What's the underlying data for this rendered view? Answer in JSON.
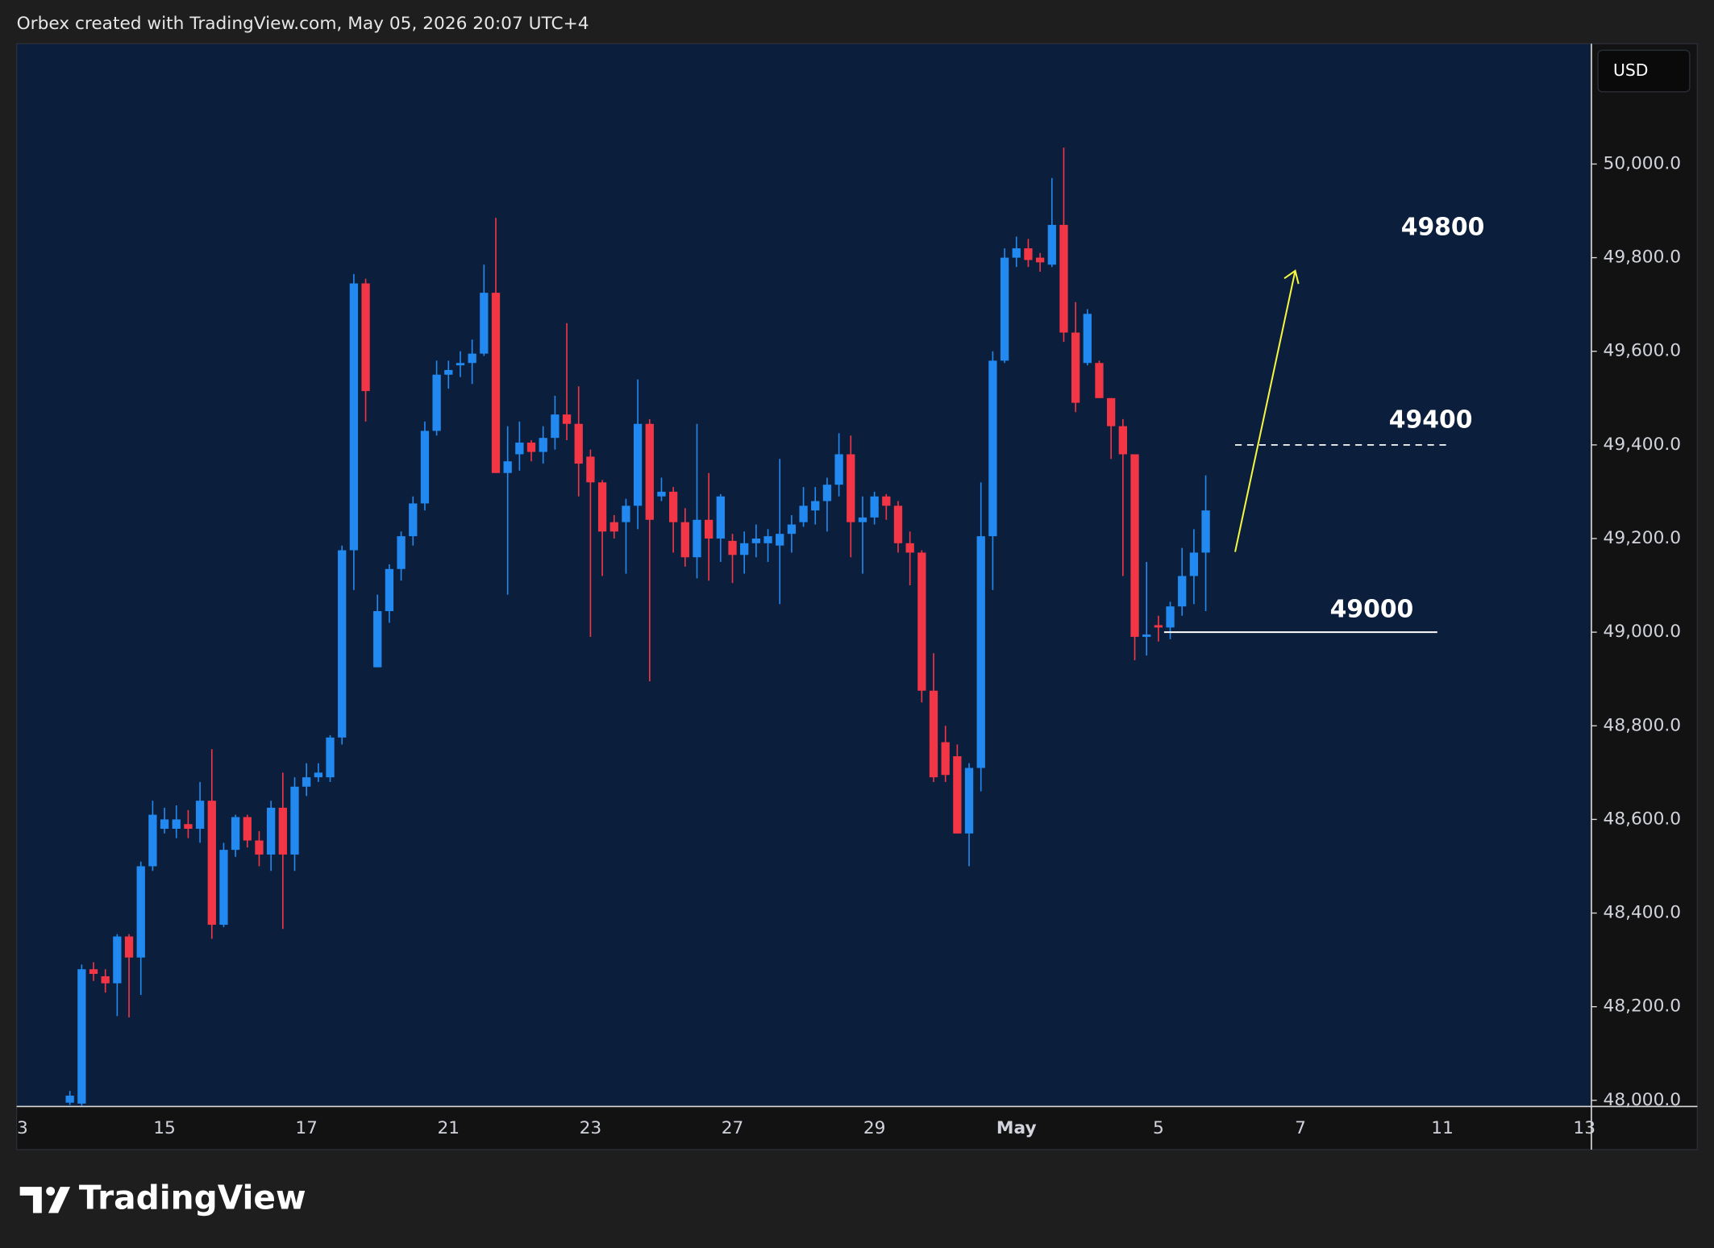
{
  "header": "Orbex created with TradingView.com, May 05, 2026 20:07 UTC+4",
  "brand": "TradingView",
  "chart_data": {
    "type": "candlestick",
    "currency": "USD",
    "up_color": "#2189f0",
    "down_color": "#f23645",
    "categories": [
      "3",
      null,
      null,
      null,
      null,
      null,
      null,
      null,
      null,
      null,
      null,
      null,
      "15",
      null,
      null,
      null,
      null,
      null,
      null,
      null,
      null,
      null,
      null,
      null,
      "17",
      null,
      null,
      null,
      null,
      null,
      null,
      null,
      null,
      null,
      null,
      null,
      "21",
      null,
      null,
      null,
      null,
      null,
      null,
      null,
      null,
      null,
      null,
      null,
      "23",
      null,
      null,
      null,
      null,
      null,
      null,
      null,
      null,
      null,
      null,
      null,
      "27",
      null,
      null,
      null,
      null,
      null,
      null,
      null,
      null,
      null,
      null,
      null,
      "29",
      null,
      null,
      null,
      null,
      null,
      null,
      null,
      null,
      null,
      null,
      null,
      "May",
      null,
      null,
      null,
      null,
      null,
      null,
      null,
      null,
      null,
      null,
      null,
      "5",
      null,
      null,
      null,
      null,
      null,
      null,
      null,
      null,
      null,
      null,
      null,
      "7",
      null,
      null,
      null,
      null,
      null,
      null,
      null,
      null,
      null,
      null,
      null,
      "11",
      null,
      null,
      null,
      null,
      null,
      null,
      null,
      null,
      null,
      null,
      null,
      "13"
    ],
    "open": [
      null,
      null,
      null,
      null,
      47995,
      47993,
      48280,
      48265,
      48250,
      48350,
      48305,
      48500,
      48580,
      48580,
      48590,
      48580,
      48640,
      48375,
      48535,
      48605,
      48555,
      48525,
      48625,
      48525,
      48670,
      48690,
      48690,
      48775,
      49175,
      49745,
      48925,
      49045,
      49135,
      49205,
      49275,
      49430,
      49550,
      49570,
      49575,
      49595,
      49725,
      49340,
      49380,
      49405,
      49385,
      49415,
      49465,
      49445,
      49375,
      49320,
      49235,
      49235,
      49270,
      49445,
      49290,
      49300,
      49235,
      49160,
      49240,
      49200,
      49195,
      49165,
      49190,
      49190,
      49185,
      49210,
      49235,
      49260,
      49280,
      49315,
      49380,
      49235,
      49245,
      49290,
      49270,
      49190,
      49170,
      48875,
      48765,
      48735,
      48570,
      48710,
      49205,
      49580,
      49800,
      49820,
      49800,
      49785,
      49870,
      49640,
      49575,
      49575,
      49500,
      49440,
      49380,
      48990,
      49015,
      49010,
      49055,
      49120,
      49170,
      null,
      null,
      null,
      null,
      null,
      null,
      null,
      null,
      null,
      null,
      null,
      null,
      null,
      null,
      null,
      null,
      null,
      null,
      null,
      null,
      null,
      null,
      null,
      null,
      null,
      null,
      null,
      null,
      null,
      null,
      null,
      null
    ],
    "high": [
      null,
      null,
      null,
      null,
      48020,
      48290,
      48295,
      48280,
      48355,
      48355,
      48510,
      48640,
      48625,
      48630,
      48620,
      48680,
      48750,
      48550,
      48610,
      48610,
      48575,
      48640,
      48700,
      48690,
      48720,
      48720,
      48780,
      49185,
      49765,
      49755,
      49080,
      49145,
      49215,
      49290,
      49450,
      49580,
      49580,
      49600,
      49625,
      49785,
      49885,
      49440,
      49450,
      49410,
      49440,
      49505,
      49660,
      49525,
      49390,
      49325,
      49250,
      49285,
      49540,
      49455,
      49330,
      49310,
      49265,
      49445,
      49340,
      49295,
      49210,
      49215,
      49230,
      49220,
      49370,
      49250,
      49310,
      49310,
      49330,
      49425,
      49420,
      49290,
      49300,
      49295,
      49280,
      49215,
      49175,
      48955,
      48800,
      48760,
      48720,
      49320,
      49600,
      49820,
      49845,
      49840,
      49810,
      49970,
      50035,
      49705,
      49690,
      49580,
      49500,
      49455,
      49380,
      49150,
      49035,
      49065,
      49180,
      49220,
      49335,
      null,
      null,
      null,
      null,
      null,
      null,
      null,
      null,
      null,
      null,
      null,
      null,
      null,
      null,
      null,
      null,
      null,
      null,
      null,
      null,
      null,
      null,
      null,
      null,
      null,
      null,
      null,
      null,
      null,
      null,
      null,
      null
    ],
    "low": [
      null,
      null,
      null,
      null,
      47990,
      47988,
      48255,
      48230,
      48180,
      48177,
      48225,
      48490,
      48570,
      48560,
      48560,
      48550,
      48345,
      48370,
      48520,
      48540,
      48500,
      48490,
      48366,
      48490,
      48650,
      48680,
      48680,
      48760,
      49090,
      49450,
      48925,
      49020,
      49110,
      49185,
      49260,
      49420,
      49520,
      49545,
      49530,
      49590,
      49340,
      49080,
      49345,
      49365,
      49360,
      49390,
      49410,
      49290,
      48990,
      49120,
      49200,
      49125,
      49220,
      48895,
      49280,
      49170,
      49140,
      49115,
      49110,
      49150,
      49105,
      49125,
      49160,
      49150,
      49060,
      49170,
      49225,
      49230,
      49215,
      49290,
      49160,
      49125,
      49230,
      49240,
      49170,
      49100,
      48850,
      48680,
      48680,
      48570,
      48500,
      48660,
      49090,
      49575,
      49780,
      49780,
      49770,
      49780,
      49620,
      49470,
      49570,
      49500,
      49370,
      49120,
      48940,
      48950,
      48980,
      48985,
      49035,
      49060,
      49045,
      null,
      null,
      null,
      null,
      null,
      null,
      null,
      null,
      null,
      null,
      null,
      null,
      null,
      null,
      null,
      null,
      null,
      null,
      null,
      null,
      null,
      null,
      null,
      null,
      null,
      null,
      null,
      null,
      null,
      null,
      null,
      null
    ],
    "close": [
      null,
      null,
      null,
      null,
      48010,
      48280,
      48270,
      48250,
      48350,
      48305,
      48500,
      48610,
      48600,
      48600,
      48580,
      48640,
      48375,
      48535,
      48605,
      48555,
      48525,
      48625,
      48525,
      48670,
      48690,
      48700,
      48775,
      49175,
      49745,
      49515,
      49045,
      49135,
      49205,
      49275,
      49430,
      49550,
      49560,
      49575,
      49595,
      49725,
      49340,
      49365,
      49405,
      49385,
      49415,
      49465,
      49445,
      49360,
      49320,
      49215,
      49215,
      49270,
      49445,
      49240,
      49300,
      49235,
      49160,
      49240,
      49200,
      49290,
      49165,
      49190,
      49200,
      49205,
      49210,
      49230,
      49270,
      49280,
      49315,
      49380,
      49235,
      49245,
      49290,
      49270,
      49190,
      49170,
      48875,
      48690,
      48695,
      48570,
      48710,
      49205,
      49580,
      49800,
      49820,
      49795,
      49790,
      49870,
      49640,
      49490,
      49680,
      49500,
      49440,
      49380,
      48990,
      48995,
      49010,
      49055,
      49120,
      49170,
      49260,
      null,
      null,
      null,
      null,
      null,
      null,
      null,
      null,
      null,
      null,
      null,
      null,
      null,
      null,
      null,
      null,
      null,
      null,
      null,
      null,
      null,
      null,
      null,
      null,
      null,
      null,
      null,
      null,
      null,
      null,
      null,
      null
    ],
    "ylim": [
      47988,
      50257
    ],
    "yticks": [
      {
        "value": 48000,
        "label": "48,000.0"
      },
      {
        "value": 48200,
        "label": "48,200.0"
      },
      {
        "value": 48400,
        "label": "48,400.0"
      },
      {
        "value": 48600,
        "label": "48,600.0"
      },
      {
        "value": 48800,
        "label": "48,800.0"
      },
      {
        "value": 49000,
        "label": "49,000.0"
      },
      {
        "value": 49200,
        "label": "49,200.0"
      },
      {
        "value": 49400,
        "label": "49,400.0"
      },
      {
        "value": 49600,
        "label": "49,600.0"
      },
      {
        "value": 49800,
        "label": "49,800.0"
      },
      {
        "value": 50000,
        "label": "50,000.0"
      }
    ],
    "levels": [
      {
        "value": 49800,
        "style": "arrow",
        "color": "#f5f542"
      },
      {
        "value": 49400,
        "style": "dashed",
        "color": "#ffffff"
      },
      {
        "value": 49000,
        "style": "solid",
        "color": "#ffffff"
      }
    ]
  }
}
